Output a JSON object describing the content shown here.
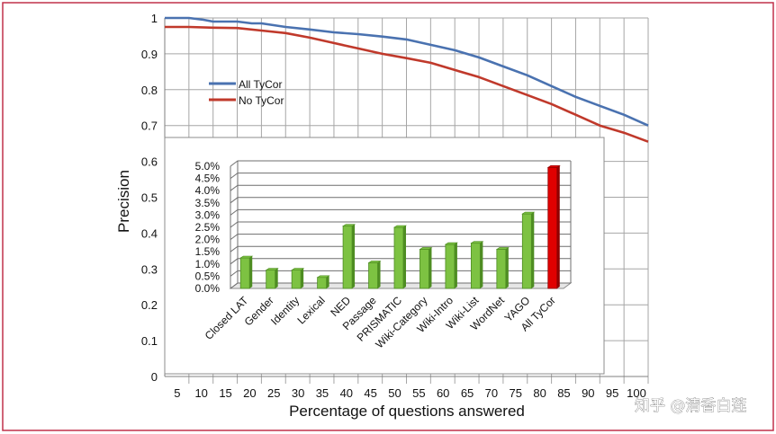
{
  "colors": {
    "frame": "#c0304a",
    "grid": "#a6a6a6",
    "series_all": "#4a72b0",
    "series_no": "#c0392b",
    "bar_green": "#7dc242",
    "bar_green_dark": "#4e8d22",
    "bar_red": "#e00000",
    "bar_red_dark": "#900000"
  },
  "watermark": "知乎 @清香白莲",
  "chart_data": [
    {
      "type": "line",
      "xlabel": "Percentage of questions answered",
      "ylabel": "Precision",
      "xlim": [
        0,
        100
      ],
      "ylim": [
        0,
        1
      ],
      "x_ticks": [
        "5",
        "10",
        "15",
        "20",
        "25",
        "30",
        "35",
        "40",
        "45",
        "50",
        "55",
        "60",
        "65",
        "70",
        "75",
        "80",
        "85",
        "90",
        "95",
        "100"
      ],
      "y_ticks": [
        "0",
        "0.1",
        "0.2",
        "0.3",
        "0.4",
        "0.5",
        "0.6",
        "0.7",
        "0.8",
        "0.9",
        "1"
      ],
      "legend": "upper-left",
      "grid": true,
      "series": [
        {
          "name": "All TyCor",
          "x": [
            0,
            5,
            8,
            10,
            15,
            18,
            20,
            25,
            30,
            35,
            40,
            45,
            50,
            55,
            60,
            65,
            70,
            75,
            80,
            85,
            90,
            95,
            100
          ],
          "y": [
            1.0,
            1.0,
            0.995,
            0.99,
            0.99,
            0.985,
            0.985,
            0.975,
            0.968,
            0.96,
            0.955,
            0.948,
            0.94,
            0.925,
            0.91,
            0.89,
            0.865,
            0.84,
            0.81,
            0.78,
            0.755,
            0.73,
            0.7
          ]
        },
        {
          "name": "No TyCor",
          "x": [
            0,
            5,
            10,
            15,
            20,
            25,
            30,
            35,
            40,
            45,
            50,
            55,
            60,
            65,
            70,
            75,
            80,
            85,
            90,
            95,
            100
          ],
          "y": [
            0.975,
            0.975,
            0.973,
            0.972,
            0.965,
            0.958,
            0.945,
            0.93,
            0.915,
            0.9,
            0.888,
            0.875,
            0.855,
            0.835,
            0.81,
            0.785,
            0.76,
            0.73,
            0.7,
            0.68,
            0.655
          ]
        }
      ]
    },
    {
      "type": "bar",
      "categories": [
        "Closed LAT",
        "Gender",
        "Identity",
        "Lexical",
        "NED",
        "Passage",
        "PRISMATIC",
        "Wiki-Category",
        "Wiki-Intro",
        "Wiki-List",
        "WordNet",
        "YAGO",
        "All TyCor"
      ],
      "values": [
        1.25,
        0.75,
        0.75,
        0.45,
        2.55,
        1.05,
        2.5,
        1.6,
        1.8,
        1.85,
        1.6,
        3.05,
        4.95
      ],
      "highlight": "All TyCor",
      "ylim": [
        0,
        5
      ],
      "y_ticks": [
        "0.0%",
        "0.5%",
        "1.0%",
        "1.5%",
        "2.0%",
        "2.5%",
        "3.0%",
        "3.5%",
        "4.0%",
        "4.5%",
        "5.0%"
      ],
      "grid": true
    }
  ]
}
